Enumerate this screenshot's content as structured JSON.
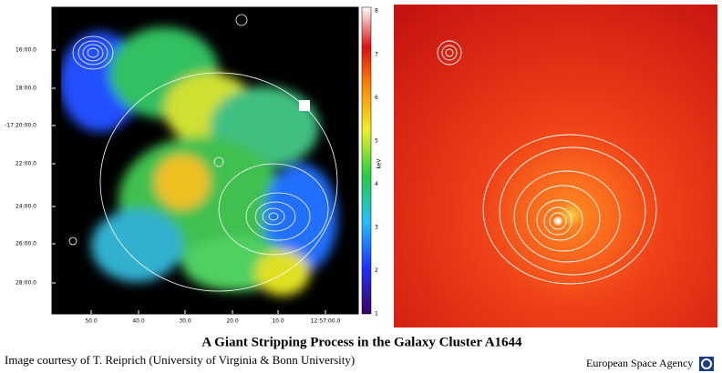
{
  "left_panel": {
    "y_labels": [
      "16:00.0",
      "18:00.0",
      "-17:20:00.0",
      "22:00.0",
      "24:00.0",
      "26:00.0",
      "28:00.0"
    ],
    "x_labels": [
      "50.0",
      "40.0",
      "30.0",
      "20.0",
      "10.0",
      "12:57:00.0"
    ],
    "colorbar": {
      "label": "keV",
      "ticks": [
        "8",
        "7",
        "6",
        "5",
        "4",
        "3",
        "2",
        "1"
      ]
    }
  },
  "caption": {
    "title": "A Giant Stripping Process in the Galaxy Cluster A1644",
    "credit": "Image courtesy of T. Reiprich (University of Virginia & Bonn University)",
    "agency": "European Space Agency"
  }
}
